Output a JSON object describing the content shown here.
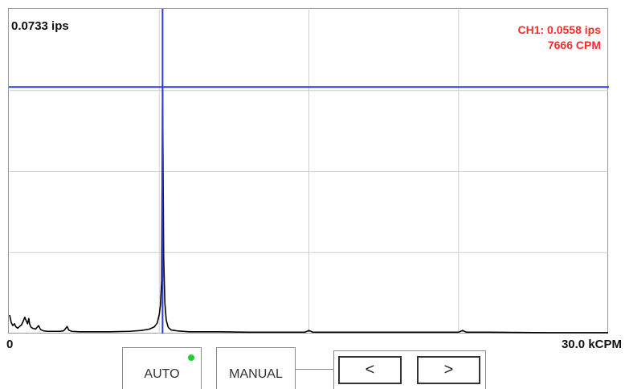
{
  "plot": {
    "y_max_label": "0.0733 ips",
    "readout": {
      "channel_value": "CH1: 0.0558 ips",
      "frequency": "7666 CPM",
      "color": "#ff2a2a"
    },
    "x_min_label": "0",
    "x_max_label": "30.0 kCPM",
    "cursor_color": "#2e3ddb"
  },
  "chart_data": {
    "type": "line",
    "x_unit": "CPM",
    "y_unit": "ips",
    "xlim": [
      0,
      30000
    ],
    "ylim": [
      0,
      0.0733
    ],
    "grid": true,
    "grid_divisions": {
      "x": 4,
      "y": 4
    },
    "cursor": {
      "x": 7666,
      "y": 0.0558
    },
    "series": [
      {
        "points": [
          [
            0,
            0.0042
          ],
          [
            80,
            0.0025
          ],
          [
            160,
            0.0018
          ],
          [
            240,
            0.0022
          ],
          [
            320,
            0.0015
          ],
          [
            400,
            0.0012
          ],
          [
            500,
            0.0016
          ],
          [
            600,
            0.002
          ],
          [
            700,
            0.003
          ],
          [
            760,
            0.0037
          ],
          [
            820,
            0.003
          ],
          [
            900,
            0.0022
          ],
          [
            960,
            0.0034
          ],
          [
            1000,
            0.0022
          ],
          [
            1060,
            0.0015
          ],
          [
            1150,
            0.0012
          ],
          [
            1300,
            0.001
          ],
          [
            1450,
            0.0018
          ],
          [
            1550,
            0.0009
          ],
          [
            1700,
            0.0006
          ],
          [
            1900,
            0.0005
          ],
          [
            2200,
            0.0005
          ],
          [
            2500,
            0.0005
          ],
          [
            2700,
            0.0006
          ],
          [
            2800,
            0.0011
          ],
          [
            2880,
            0.0016
          ],
          [
            2960,
            0.0008
          ],
          [
            3100,
            0.0005
          ],
          [
            3500,
            0.0004
          ],
          [
            4000,
            0.0004
          ],
          [
            5000,
            0.0004
          ],
          [
            6000,
            0.0005
          ],
          [
            6600,
            0.0007
          ],
          [
            7000,
            0.001
          ],
          [
            7250,
            0.0015
          ],
          [
            7400,
            0.0024
          ],
          [
            7500,
            0.0043
          ],
          [
            7560,
            0.0065
          ],
          [
            7620,
            0.012
          ],
          [
            7666,
            0.0558
          ],
          [
            7720,
            0.0175
          ],
          [
            7780,
            0.007
          ],
          [
            7850,
            0.003
          ],
          [
            7950,
            0.0014
          ],
          [
            8100,
            0.0008
          ],
          [
            8400,
            0.0006
          ],
          [
            9000,
            0.0004
          ],
          [
            10500,
            0.0004
          ],
          [
            12000,
            0.0003
          ],
          [
            14000,
            0.0003
          ],
          [
            14800,
            0.0003
          ],
          [
            15000,
            0.0007
          ],
          [
            15200,
            0.0003
          ],
          [
            16500,
            0.0003
          ],
          [
            19000,
            0.0003
          ],
          [
            21000,
            0.0003
          ],
          [
            22500,
            0.0003
          ],
          [
            22700,
            0.0007
          ],
          [
            22900,
            0.0003
          ],
          [
            24000,
            0.0003
          ],
          [
            27000,
            0.0002
          ],
          [
            30000,
            0.0002
          ]
        ]
      }
    ]
  },
  "controls": {
    "auto_label": "AUTO",
    "auto_indicator_color": "#1fcf2f",
    "manual_label": "MANUAL",
    "prev_label": "<",
    "next_label": ">"
  }
}
